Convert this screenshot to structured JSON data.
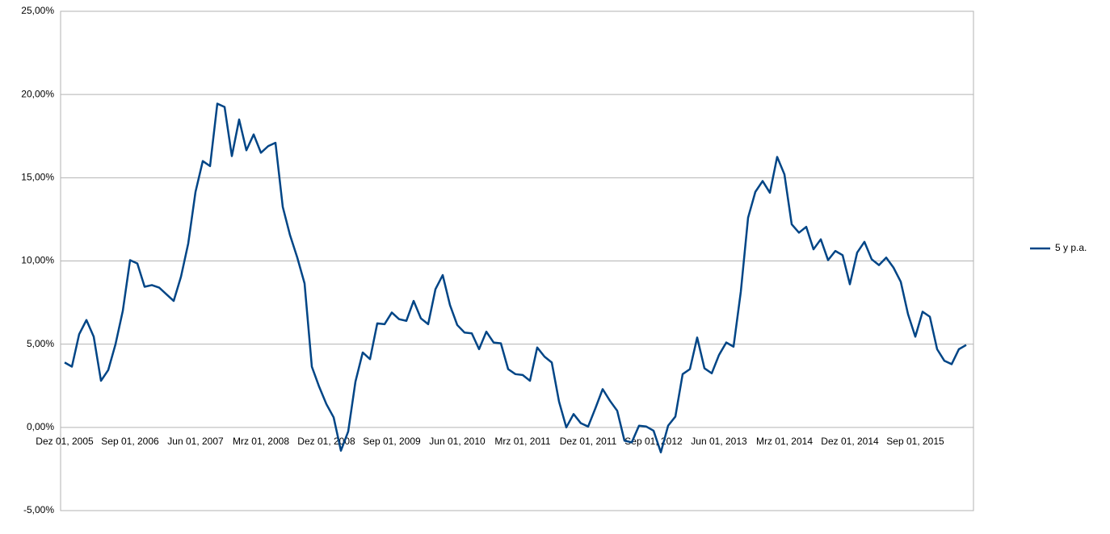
{
  "chart_data": {
    "type": "line",
    "categories": [
      "Dez 01, 2005",
      null,
      null,
      null,
      null,
      null,
      null,
      null,
      null,
      "Sep 01, 2006",
      null,
      null,
      null,
      null,
      null,
      null,
      null,
      null,
      "Jun 01, 2007",
      null,
      null,
      null,
      null,
      null,
      null,
      null,
      null,
      "Mrz 01, 2008",
      null,
      null,
      null,
      null,
      null,
      null,
      null,
      null,
      "Dez 01, 2008",
      null,
      null,
      null,
      null,
      null,
      null,
      null,
      null,
      "Sep 01, 2009",
      null,
      null,
      null,
      null,
      null,
      null,
      null,
      null,
      "Jun 01, 2010",
      null,
      null,
      null,
      null,
      null,
      null,
      null,
      null,
      "Mrz 01, 2011",
      null,
      null,
      null,
      null,
      null,
      null,
      null,
      null,
      "Dez 01, 2011",
      null,
      null,
      null,
      null,
      null,
      null,
      null,
      null,
      "Sep 01, 2012",
      null,
      null,
      null,
      null,
      null,
      null,
      null,
      null,
      "Jun 01, 2013",
      null,
      null,
      null,
      null,
      null,
      null,
      null,
      null,
      "Mrz 01, 2014",
      null,
      null,
      null,
      null,
      null,
      null,
      null,
      null,
      "Dez 01, 2014",
      null,
      null,
      null,
      null,
      null,
      null,
      null,
      null,
      "Sep 01, 2015",
      null,
      null,
      null,
      null,
      null,
      null,
      null
    ],
    "series": [
      {
        "name": "5 y p.a.",
        "color": "#004586",
        "values": [
          3.9,
          3.65,
          5.6,
          6.45,
          5.45,
          2.8,
          3.45,
          5.0,
          7.0,
          10.05,
          9.85,
          8.45,
          8.55,
          8.4,
          8.0,
          7.6,
          9.05,
          11.05,
          14.15,
          16.0,
          15.7,
          19.45,
          19.25,
          16.3,
          18.5,
          16.65,
          17.6,
          16.5,
          16.9,
          17.1,
          13.25,
          11.55,
          10.2,
          8.65,
          3.65,
          2.45,
          1.4,
          0.6,
          -1.4,
          -0.25,
          2.75,
          4.5,
          4.1,
          6.25,
          6.2,
          6.9,
          6.5,
          6.4,
          7.6,
          6.55,
          6.2,
          8.3,
          9.15,
          7.35,
          6.15,
          5.7,
          5.65,
          4.7,
          5.75,
          5.1,
          5.05,
          3.5,
          3.2,
          3.15,
          2.8,
          4.8,
          4.25,
          3.9,
          1.55,
          0,
          0.8,
          0.25,
          0.05,
          1.15,
          2.3,
          1.6,
          1.0,
          -0.8,
          -0.9,
          0.1,
          0.05,
          -0.2,
          -1.5,
          0.1,
          0.65,
          3.2,
          3.5,
          5.4,
          3.55,
          3.25,
          4.35,
          5.1,
          4.85,
          8.15,
          12.6,
          14.15,
          14.8,
          14.1,
          16.25,
          15.2,
          12.2,
          11.7,
          12.05,
          10.7,
          11.3,
          10.05,
          10.6,
          10.35,
          8.6,
          10.5,
          11.15,
          10.1,
          9.75,
          10.2,
          9.6,
          8.75,
          6.8,
          5.45,
          6.95,
          6.65,
          4.7,
          4.0,
          3.8,
          4.7,
          4.95
        ]
      }
    ],
    "ylim": [
      -5,
      25
    ],
    "yticks": [
      {
        "value": -5,
        "label": "-5,00%"
      },
      {
        "value": 0,
        "label": "0,00%"
      },
      {
        "value": 5,
        "label": "5,00%"
      },
      {
        "value": 10,
        "label": "10,00%"
      },
      {
        "value": 15,
        "label": "15,00%"
      },
      {
        "value": 20,
        "label": "20,00%"
      },
      {
        "value": 25,
        "label": "25,00%"
      }
    ],
    "grid": true,
    "legend": "right"
  }
}
